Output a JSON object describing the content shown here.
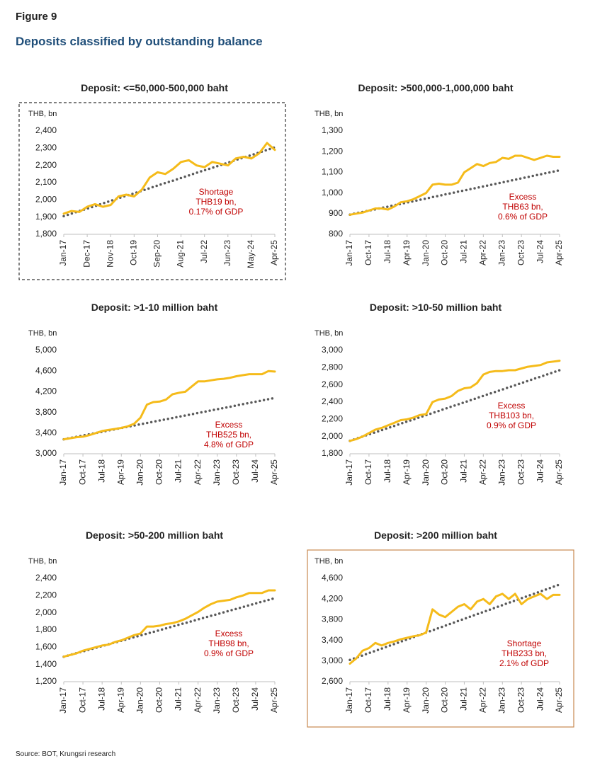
{
  "figure": "Figure 9",
  "title": "Deposits classified by outstanding balance",
  "source": "Source: BOT, Krungsri research",
  "chart_data": [
    {
      "type": "line",
      "title": "Deposit: <=50,000-500,000 baht",
      "y_label": "THB, bn",
      "border": "dashed",
      "border_color": "#333333",
      "categories": [
        "Jan-17",
        null,
        null,
        "Dec-17",
        null,
        null,
        "Nov-18",
        null,
        null,
        "Oct-19",
        null,
        null,
        "Sep-20",
        null,
        null,
        "Aug-21",
        null,
        null,
        "Jul-22",
        null,
        null,
        "Jun-23",
        null,
        null,
        "May-24",
        null,
        null,
        "Apr-25"
      ],
      "series": [
        {
          "color": "#f5bb1a",
          "style": "solid",
          "values": [
            1920,
            1935,
            1930,
            1960,
            1975,
            1960,
            1970,
            2020,
            2030,
            2020,
            2060,
            2130,
            2160,
            2150,
            2180,
            2220,
            2230,
            2200,
            2190,
            2220,
            2210,
            2200,
            2240,
            2250,
            2240,
            2270,
            2330,
            2290
          ]
        },
        {
          "color": "#595959",
          "style": "dotted",
          "values": [
            1905,
            1920,
            1935,
            1949,
            1964,
            1979,
            1994,
            2009,
            2024,
            2038,
            2053,
            2068,
            2083,
            2098,
            2112,
            2127,
            2142,
            2157,
            2172,
            2186,
            2201,
            2216,
            2231,
            2246,
            2260,
            2275,
            2290,
            2305
          ]
        }
      ],
      "annotation": [
        "Shortage",
        "THB19 bn,",
        "0.17% of GDP"
      ],
      "annotation_color": "#c00000",
      "ylim": [
        1800,
        2400
      ],
      "yticks": [
        {
          "value": 1800,
          "label": "1,800"
        },
        {
          "value": 1900,
          "label": "1,900"
        },
        {
          "value": 2000,
          "label": "2,000"
        },
        {
          "value": 2100,
          "label": "2,100"
        },
        {
          "value": 2200,
          "label": "2,200"
        },
        {
          "value": 2300,
          "label": "2,300"
        },
        {
          "value": 2400,
          "label": "2,400"
        }
      ]
    },
    {
      "type": "line",
      "title": "Deposit: >500,000-1,000,000 baht",
      "y_label": "THB, bn",
      "categories": [
        "Jan-17",
        null,
        null,
        "Oct-17",
        null,
        null,
        "Jul-18",
        null,
        null,
        "Apr-19",
        null,
        null,
        "Jan-20",
        null,
        null,
        "Oct-20",
        null,
        null,
        "Jul-21",
        null,
        null,
        "Apr-22",
        null,
        null,
        "Jan-23",
        null,
        null,
        "Oct-23",
        null,
        null,
        "Jul-24",
        null,
        null,
        "Apr-25"
      ],
      "series": [
        {
          "color": "#f5bb1a",
          "style": "solid",
          "values": [
            895,
            900,
            905,
            915,
            925,
            925,
            920,
            935,
            955,
            960,
            970,
            985,
            1000,
            1040,
            1045,
            1040,
            1040,
            1050,
            1100,
            1120,
            1140,
            1130,
            1145,
            1150,
            1170,
            1165,
            1180,
            1180,
            1170,
            1160,
            1170,
            1180,
            1175,
            1175
          ]
        },
        {
          "color": "#595959",
          "style": "dotted",
          "values": [
            895,
            902,
            908,
            915,
            921,
            928,
            934,
            941,
            947,
            954,
            960,
            967,
            973,
            980,
            986,
            993,
            999,
            1006,
            1012,
            1019,
            1025,
            1032,
            1038,
            1045,
            1051,
            1058,
            1064,
            1071,
            1077,
            1084,
            1090,
            1097,
            1103,
            1110
          ]
        }
      ],
      "annotation": [
        "Excess",
        "THB63 bn,",
        "0.6% of GDP"
      ],
      "annotation_color": "#c00000",
      "ylim": [
        800,
        1300
      ],
      "yticks": [
        800,
        900,
        {
          "value": 1000,
          "label": "1,000"
        },
        {
          "value": 1100,
          "label": "1,100"
        },
        {
          "value": 1200,
          "label": "1,200"
        },
        {
          "value": 1300,
          "label": "1,300"
        }
      ]
    },
    {
      "type": "line",
      "title": "Deposit: >1-10 million baht",
      "y_label": "THB, bn",
      "categories": [
        "Jan-17",
        null,
        null,
        "Oct-17",
        null,
        null,
        "Jul-18",
        null,
        null,
        "Apr-19",
        null,
        null,
        "Jan-20",
        null,
        null,
        "Oct-20",
        null,
        null,
        "Jul-21",
        null,
        null,
        "Apr-22",
        null,
        null,
        "Jan-23",
        null,
        null,
        "Oct-23",
        null,
        null,
        "Jul-24",
        null,
        null,
        "Apr-25"
      ],
      "series": [
        {
          "color": "#f5bb1a",
          "style": "solid",
          "values": [
            3280,
            3300,
            3320,
            3330,
            3360,
            3400,
            3440,
            3460,
            3480,
            3500,
            3530,
            3580,
            3700,
            3950,
            4000,
            4010,
            4050,
            4150,
            4180,
            4200,
            4300,
            4400,
            4400,
            4420,
            4440,
            4450,
            4470,
            4500,
            4520,
            4540,
            4540,
            4540,
            4600,
            4590
          ]
        },
        {
          "color": "#595959",
          "style": "dotted",
          "values": [
            3280,
            3304,
            3328,
            3353,
            3377,
            3401,
            3425,
            3450,
            3474,
            3498,
            3522,
            3547,
            3571,
            3595,
            3619,
            3644,
            3668,
            3692,
            3716,
            3741,
            3765,
            3789,
            3813,
            3838,
            3862,
            3886,
            3910,
            3935,
            3959,
            3983,
            4007,
            4032,
            4056,
            4080
          ]
        }
      ],
      "annotation": [
        "Excess",
        "THB525 bn,",
        "4.8% of GDP"
      ],
      "annotation_color": "#c00000",
      "ylim": [
        3000,
        5000
      ],
      "yticks": [
        {
          "value": 3000,
          "label": "3,000"
        },
        {
          "value": 3400,
          "label": "3,400"
        },
        {
          "value": 3800,
          "label": "3,800"
        },
        {
          "value": 4200,
          "label": "4,200"
        },
        {
          "value": 4600,
          "label": "4,600"
        },
        {
          "value": 5000,
          "label": "5,000"
        }
      ]
    },
    {
      "type": "line",
      "title": "Deposit: >10-50 million baht",
      "y_label": "THB, bn",
      "categories": [
        "Jan-17",
        null,
        null,
        "Oct-17",
        null,
        null,
        "Jul-18",
        null,
        null,
        "Apr-19",
        null,
        null,
        "Jan-20",
        null,
        null,
        "Oct-20",
        null,
        null,
        "Jul-21",
        null,
        null,
        "Apr-22",
        null,
        null,
        "Jan-23",
        null,
        null,
        "Oct-23",
        null,
        null,
        "Jul-24",
        null,
        null,
        "Apr-25"
      ],
      "series": [
        {
          "color": "#f5bb1a",
          "style": "solid",
          "values": [
            1950,
            1970,
            2000,
            2040,
            2080,
            2100,
            2130,
            2160,
            2190,
            2200,
            2220,
            2250,
            2260,
            2400,
            2430,
            2440,
            2470,
            2530,
            2560,
            2570,
            2620,
            2720,
            2750,
            2760,
            2760,
            2770,
            2770,
            2790,
            2810,
            2820,
            2830,
            2860,
            2870,
            2880
          ]
        },
        {
          "color": "#595959",
          "style": "dotted",
          "values": [
            1950,
            1975,
            2000,
            2025,
            2049,
            2074,
            2099,
            2124,
            2149,
            2174,
            2199,
            2223,
            2248,
            2273,
            2298,
            2323,
            2348,
            2372,
            2397,
            2422,
            2447,
            2472,
            2497,
            2522,
            2546,
            2571,
            2596,
            2621,
            2646,
            2671,
            2695,
            2720,
            2745,
            2770
          ]
        }
      ],
      "annotation": [
        "Excess",
        "THB103 bn,",
        "0.9% of GDP"
      ],
      "annotation_color": "#c00000",
      "ylim": [
        1800,
        3000
      ],
      "yticks": [
        {
          "value": 1800,
          "label": "1,800"
        },
        {
          "value": 2000,
          "label": "2,000"
        },
        {
          "value": 2200,
          "label": "2,200"
        },
        {
          "value": 2400,
          "label": "2,400"
        },
        {
          "value": 2600,
          "label": "2,600"
        },
        {
          "value": 2800,
          "label": "2,800"
        },
        {
          "value": 3000,
          "label": "3,000"
        }
      ]
    },
    {
      "type": "line",
      "title": "Deposit: >50-200 million baht",
      "y_label": "THB, bn",
      "categories": [
        "Jan-17",
        null,
        null,
        "Oct-17",
        null,
        null,
        "Jul-18",
        null,
        null,
        "Apr-19",
        null,
        null,
        "Jan-20",
        null,
        null,
        "Oct-20",
        null,
        null,
        "Jul-21",
        null,
        null,
        "Apr-22",
        null,
        null,
        "Jan-23",
        null,
        null,
        "Oct-23",
        null,
        null,
        "Jul-24",
        null,
        null,
        "Apr-25"
      ],
      "series": [
        {
          "color": "#f5bb1a",
          "style": "solid",
          "values": [
            1490,
            1510,
            1530,
            1560,
            1580,
            1600,
            1620,
            1630,
            1660,
            1680,
            1710,
            1740,
            1760,
            1840,
            1840,
            1850,
            1870,
            1880,
            1900,
            1930,
            1970,
            2010,
            2060,
            2100,
            2130,
            2140,
            2150,
            2180,
            2200,
            2230,
            2230,
            2230,
            2260,
            2260
          ]
        },
        {
          "color": "#595959",
          "style": "dotted",
          "values": [
            1490,
            1511,
            1531,
            1552,
            1572,
            1593,
            1614,
            1634,
            1655,
            1675,
            1696,
            1717,
            1737,
            1758,
            1778,
            1799,
            1820,
            1840,
            1861,
            1881,
            1902,
            1923,
            1943,
            1964,
            1984,
            2005,
            2026,
            2046,
            2067,
            2087,
            2108,
            2129,
            2149,
            2170
          ]
        }
      ],
      "annotation": [
        "Excess",
        "THB98 bn,",
        "0.9% of GDP"
      ],
      "annotation_color": "#c00000",
      "ylim": [
        1200,
        2400
      ],
      "yticks": [
        {
          "value": 1200,
          "label": "1,200"
        },
        {
          "value": 1400,
          "label": "1,400"
        },
        {
          "value": 1600,
          "label": "1,600"
        },
        {
          "value": 1800,
          "label": "1,800"
        },
        {
          "value": 2000,
          "label": "2,000"
        },
        {
          "value": 2200,
          "label": "2,200"
        },
        {
          "value": 2400,
          "label": "2,400"
        }
      ]
    },
    {
      "type": "line",
      "title": "Deposit: >200 million baht",
      "y_label": "THB, bn",
      "border": "solid",
      "border_color": "#c8894f",
      "categories": [
        "Jan-17",
        null,
        null,
        "Oct-17",
        null,
        null,
        "Jul-18",
        null,
        null,
        "Apr-19",
        null,
        null,
        "Jan-20",
        null,
        null,
        "Oct-20",
        null,
        null,
        "Jul-21",
        null,
        null,
        "Apr-22",
        null,
        null,
        "Jan-23",
        null,
        null,
        "Oct-23",
        null,
        null,
        "Jul-24",
        null,
        null,
        "Apr-25"
      ],
      "series": [
        {
          "color": "#f5bb1a",
          "style": "solid",
          "values": [
            2950,
            3050,
            3200,
            3250,
            3350,
            3300,
            3350,
            3380,
            3420,
            3450,
            3480,
            3500,
            3550,
            4000,
            3900,
            3850,
            3950,
            4050,
            4100,
            4000,
            4150,
            4200,
            4100,
            4250,
            4300,
            4200,
            4300,
            4100,
            4200,
            4250,
            4300,
            4200,
            4280,
            4280
          ]
        },
        {
          "color": "#595959",
          "style": "dotted",
          "values": [
            3020,
            3064,
            3108,
            3153,
            3197,
            3241,
            3285,
            3330,
            3374,
            3418,
            3462,
            3507,
            3551,
            3595,
            3639,
            3684,
            3728,
            3772,
            3816,
            3861,
            3905,
            3949,
            3993,
            4038,
            4082,
            4126,
            4170,
            4215,
            4259,
            4303,
            4347,
            4392,
            4436,
            4480
          ]
        }
      ],
      "annotation": [
        "Shortage",
        "THB233 bn,",
        "2.1% of GDP"
      ],
      "annotation_color": "#c00000",
      "ylim": [
        2600,
        4600
      ],
      "yticks": [
        {
          "value": 2600,
          "label": "2,600"
        },
        {
          "value": 3000,
          "label": "3,000"
        },
        {
          "value": 3400,
          "label": "3,400"
        },
        {
          "value": 3800,
          "label": "3,800"
        },
        {
          "value": 4200,
          "label": "4,200"
        },
        {
          "value": 4600,
          "label": "4,600"
        }
      ]
    }
  ]
}
